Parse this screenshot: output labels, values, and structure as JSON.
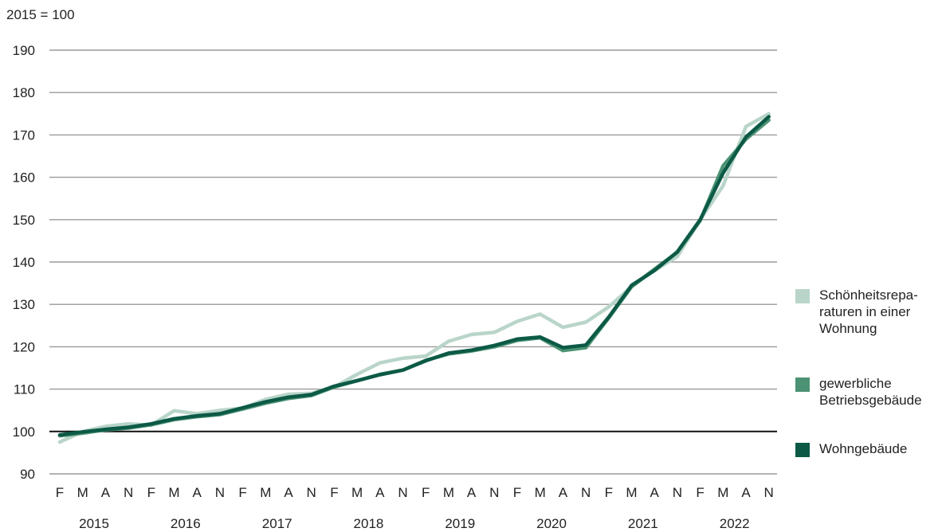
{
  "chart_data": {
    "type": "line",
    "unit_label": "2015 = 100",
    "ylim": [
      90,
      190
    ],
    "yticks": [
      90,
      100,
      110,
      120,
      130,
      140,
      150,
      160,
      170,
      180,
      190
    ],
    "x_quarter_labels": [
      "F",
      "M",
      "A",
      "N",
      "F",
      "M",
      "A",
      "N",
      "F",
      "M",
      "A",
      "N",
      "F",
      "M",
      "A",
      "N",
      "F",
      "M",
      "A",
      "N",
      "F",
      "M",
      "A",
      "N",
      "F",
      "M",
      "A",
      "N",
      "F",
      "M",
      "A",
      "N"
    ],
    "years": [
      "2015",
      "2016",
      "2017",
      "2018",
      "2019",
      "2020",
      "2021",
      "2022"
    ],
    "grid": true,
    "legend_position": "right",
    "series": [
      {
        "name": "Schönheitsreparaturen in einer Wohnung",
        "color": "#b9d5c9",
        "values": [
          97.5,
          100.0,
          101.2,
          101.8,
          101.5,
          104.9,
          104.2,
          105.0,
          105.5,
          107.6,
          108.8,
          109.0,
          110.5,
          113.5,
          116.2,
          117.3,
          117.8,
          121.3,
          122.9,
          123.4,
          126.0,
          127.7,
          124.6,
          125.8,
          129.4,
          134.2,
          138.0,
          141.3,
          150.0,
          158.0,
          172.0,
          175.0
        ]
      },
      {
        "name": "gewerbliche Betriebsgebäude",
        "color": "#4c9274",
        "values": [
          99.0,
          99.6,
          100.4,
          100.8,
          101.6,
          102.8,
          103.5,
          104.0,
          105.3,
          106.7,
          107.8,
          108.5,
          110.5,
          112.0,
          113.5,
          114.5,
          116.8,
          118.3,
          119.0,
          120.0,
          121.5,
          122.1,
          119.1,
          119.8,
          126.8,
          134.2,
          138.3,
          142.3,
          149.8,
          162.7,
          169.0,
          173.5
        ]
      },
      {
        "name": "Wohngebäude",
        "color": "#0c5a46",
        "values": [
          99.2,
          99.9,
          100.5,
          101.0,
          101.8,
          103.0,
          103.7,
          104.2,
          105.6,
          107.0,
          108.1,
          108.7,
          110.7,
          112.0,
          113.4,
          114.5,
          116.7,
          118.5,
          119.2,
          120.3,
          121.8,
          122.3,
          119.8,
          120.4,
          127.0,
          134.5,
          138.0,
          142.4,
          150.0,
          161.0,
          169.5,
          174.3
        ]
      }
    ]
  },
  "legend": {
    "items": [
      {
        "label": "Schönheitsrepa-\nraturen in einer\nWohnung",
        "color": "#b9d5c9"
      },
      {
        "label": "gewerbliche\nBetriebsgebäude",
        "color": "#4c9274"
      },
      {
        "label": "Wohngebäude",
        "color": "#0c5a46"
      }
    ]
  }
}
